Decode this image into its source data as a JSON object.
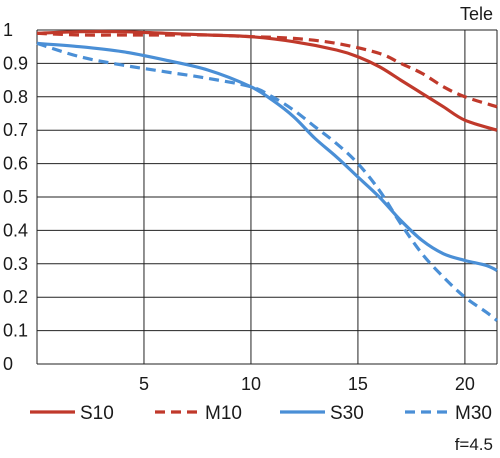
{
  "chart_data": {
    "type": "line",
    "title": "Tele",
    "note": "f=4.5",
    "xlabel": "",
    "ylabel": "",
    "xlim": [
      0,
      21.5
    ],
    "ylim": [
      0,
      1
    ],
    "x_ticks": [
      5,
      10,
      15,
      20
    ],
    "y_ticks": [
      0,
      0.1,
      0.2,
      0.3,
      0.4,
      0.5,
      0.6,
      0.7,
      0.8,
      0.9,
      1
    ],
    "x_tick_labels": [
      "5",
      "10",
      "15",
      "20"
    ],
    "y_tick_labels": [
      "0",
      "0.1",
      "0.2",
      "0.3",
      "0.4",
      "0.5",
      "0.6",
      "0.7",
      "0.8",
      "0.9",
      "1"
    ],
    "grid": true,
    "legend_position": "bottom",
    "series": [
      {
        "name": "S10",
        "color": "#c0392b",
        "dash": "solid",
        "points": [
          [
            0,
            0.99
          ],
          [
            2,
            0.995
          ],
          [
            4,
            0.995
          ],
          [
            6,
            0.99
          ],
          [
            8,
            0.985
          ],
          [
            10,
            0.98
          ],
          [
            12,
            0.965
          ],
          [
            14,
            0.94
          ],
          [
            15,
            0.92
          ],
          [
            16,
            0.89
          ],
          [
            17,
            0.85
          ],
          [
            18,
            0.81
          ],
          [
            19,
            0.77
          ],
          [
            20,
            0.73
          ],
          [
            21.5,
            0.7
          ]
        ]
      },
      {
        "name": "M10",
        "color": "#c0392b",
        "dash": "dashed",
        "points": [
          [
            0,
            0.99
          ],
          [
            2,
            0.985
          ],
          [
            4,
            0.985
          ],
          [
            6,
            0.985
          ],
          [
            8,
            0.985
          ],
          [
            10,
            0.98
          ],
          [
            12,
            0.975
          ],
          [
            14,
            0.96
          ],
          [
            16,
            0.93
          ],
          [
            17,
            0.9
          ],
          [
            18,
            0.87
          ],
          [
            19,
            0.83
          ],
          [
            20,
            0.8
          ],
          [
            21.5,
            0.77
          ]
        ]
      },
      {
        "name": "S30",
        "color": "#4a8fd6",
        "dash": "solid",
        "points": [
          [
            0,
            0.96
          ],
          [
            2,
            0.95
          ],
          [
            4,
            0.935
          ],
          [
            6,
            0.91
          ],
          [
            8,
            0.88
          ],
          [
            10,
            0.83
          ],
          [
            11,
            0.79
          ],
          [
            12,
            0.74
          ],
          [
            13,
            0.675
          ],
          [
            14,
            0.62
          ],
          [
            15,
            0.56
          ],
          [
            16,
            0.5
          ],
          [
            17,
            0.43
          ],
          [
            18,
            0.37
          ],
          [
            19,
            0.33
          ],
          [
            20,
            0.31
          ],
          [
            21,
            0.295
          ],
          [
            21.5,
            0.28
          ]
        ]
      },
      {
        "name": "M30",
        "color": "#4a8fd6",
        "dash": "dashed",
        "points": [
          [
            0,
            0.96
          ],
          [
            2,
            0.92
          ],
          [
            4,
            0.895
          ],
          [
            6,
            0.875
          ],
          [
            8,
            0.855
          ],
          [
            10,
            0.83
          ],
          [
            11,
            0.8
          ],
          [
            12,
            0.76
          ],
          [
            13,
            0.71
          ],
          [
            14,
            0.66
          ],
          [
            15,
            0.6
          ],
          [
            16,
            0.52
          ],
          [
            17,
            0.42
          ],
          [
            18,
            0.33
          ],
          [
            19,
            0.26
          ],
          [
            20,
            0.2
          ],
          [
            21,
            0.155
          ],
          [
            21.5,
            0.13
          ]
        ]
      }
    ]
  }
}
